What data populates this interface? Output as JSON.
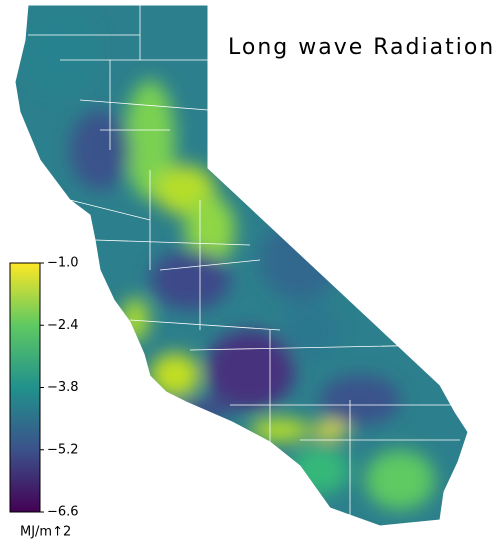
{
  "chart_data": {
    "type": "map",
    "title": "Long wave Radiation",
    "colorbar": {
      "label": "MJ/m↑2",
      "lim": [
        -6.6,
        -1.0
      ],
      "ticks": [
        {
          "value": -1.0,
          "label": "−1.0"
        },
        {
          "value": -2.4,
          "label": "−2.4"
        },
        {
          "value": -3.8,
          "label": "−3.8"
        },
        {
          "value": -5.2,
          "label": "−5.2"
        },
        {
          "value": -6.6,
          "label": "−6.6"
        }
      ]
    }
  }
}
